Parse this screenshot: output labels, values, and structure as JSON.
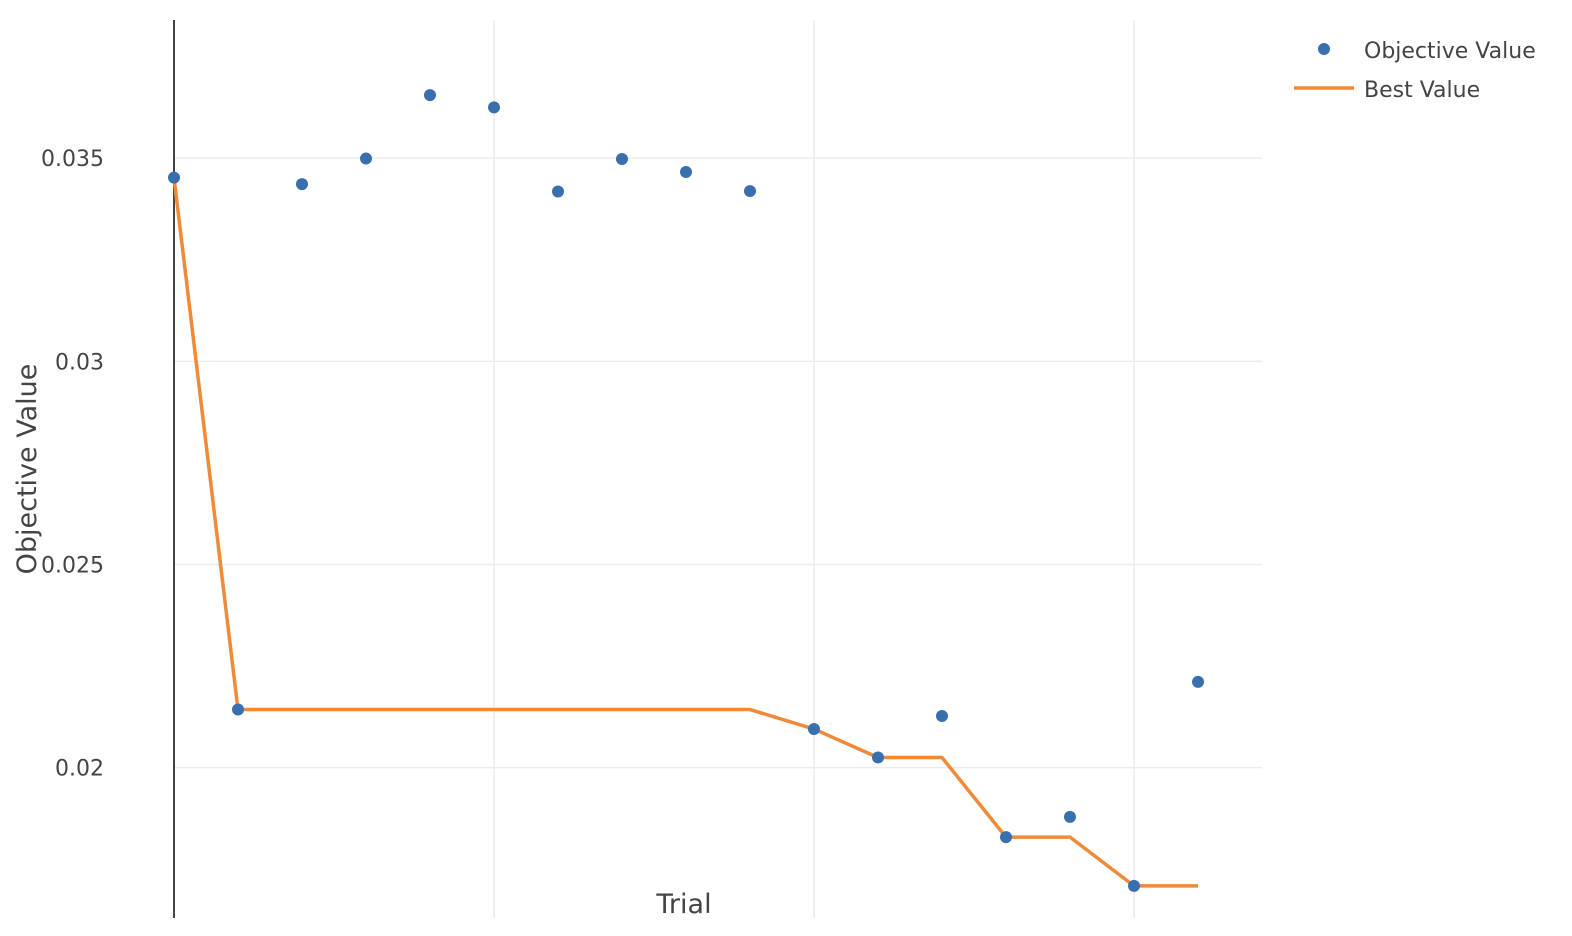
{
  "chart_data": {
    "type": "scatter",
    "xlabel": "Trial",
    "ylabel": "Objective Value",
    "xlim": [
      0,
      17
    ],
    "ylim": [
      0.0163,
      0.0384
    ],
    "x_gridlines": [
      0,
      5,
      10,
      15
    ],
    "y_ticks": [
      0.02,
      0.025,
      0.03,
      0.035
    ],
    "y_tick_labels": [
      "0.02",
      "0.025",
      "0.03",
      "0.035"
    ],
    "grid": true,
    "legend_position": "top-right",
    "series": [
      {
        "name": "Objective Value",
        "mode": "markers",
        "color": "#3a6fad",
        "x": [
          0,
          1,
          2,
          3,
          4,
          5,
          6,
          7,
          8,
          9,
          10,
          11,
          12,
          13,
          14,
          15,
          16
        ],
        "y": [
          0.03452,
          0.02143,
          0.03436,
          0.03499,
          0.03655,
          0.03625,
          0.03418,
          0.03498,
          0.03466,
          0.03419,
          0.02095,
          0.02025,
          0.02127,
          0.01829,
          0.01879,
          0.01709,
          0.02211
        ]
      },
      {
        "name": "Best Value",
        "mode": "line",
        "color": "#ef8a38",
        "x": [
          0,
          1,
          2,
          3,
          4,
          5,
          6,
          7,
          8,
          9,
          10,
          11,
          12,
          13,
          14,
          15,
          16
        ],
        "y": [
          0.03452,
          0.02143,
          0.02143,
          0.02143,
          0.02143,
          0.02143,
          0.02143,
          0.02143,
          0.02143,
          0.02143,
          0.02095,
          0.02025,
          0.02025,
          0.01829,
          0.01829,
          0.01709,
          0.01709
        ]
      }
    ]
  }
}
